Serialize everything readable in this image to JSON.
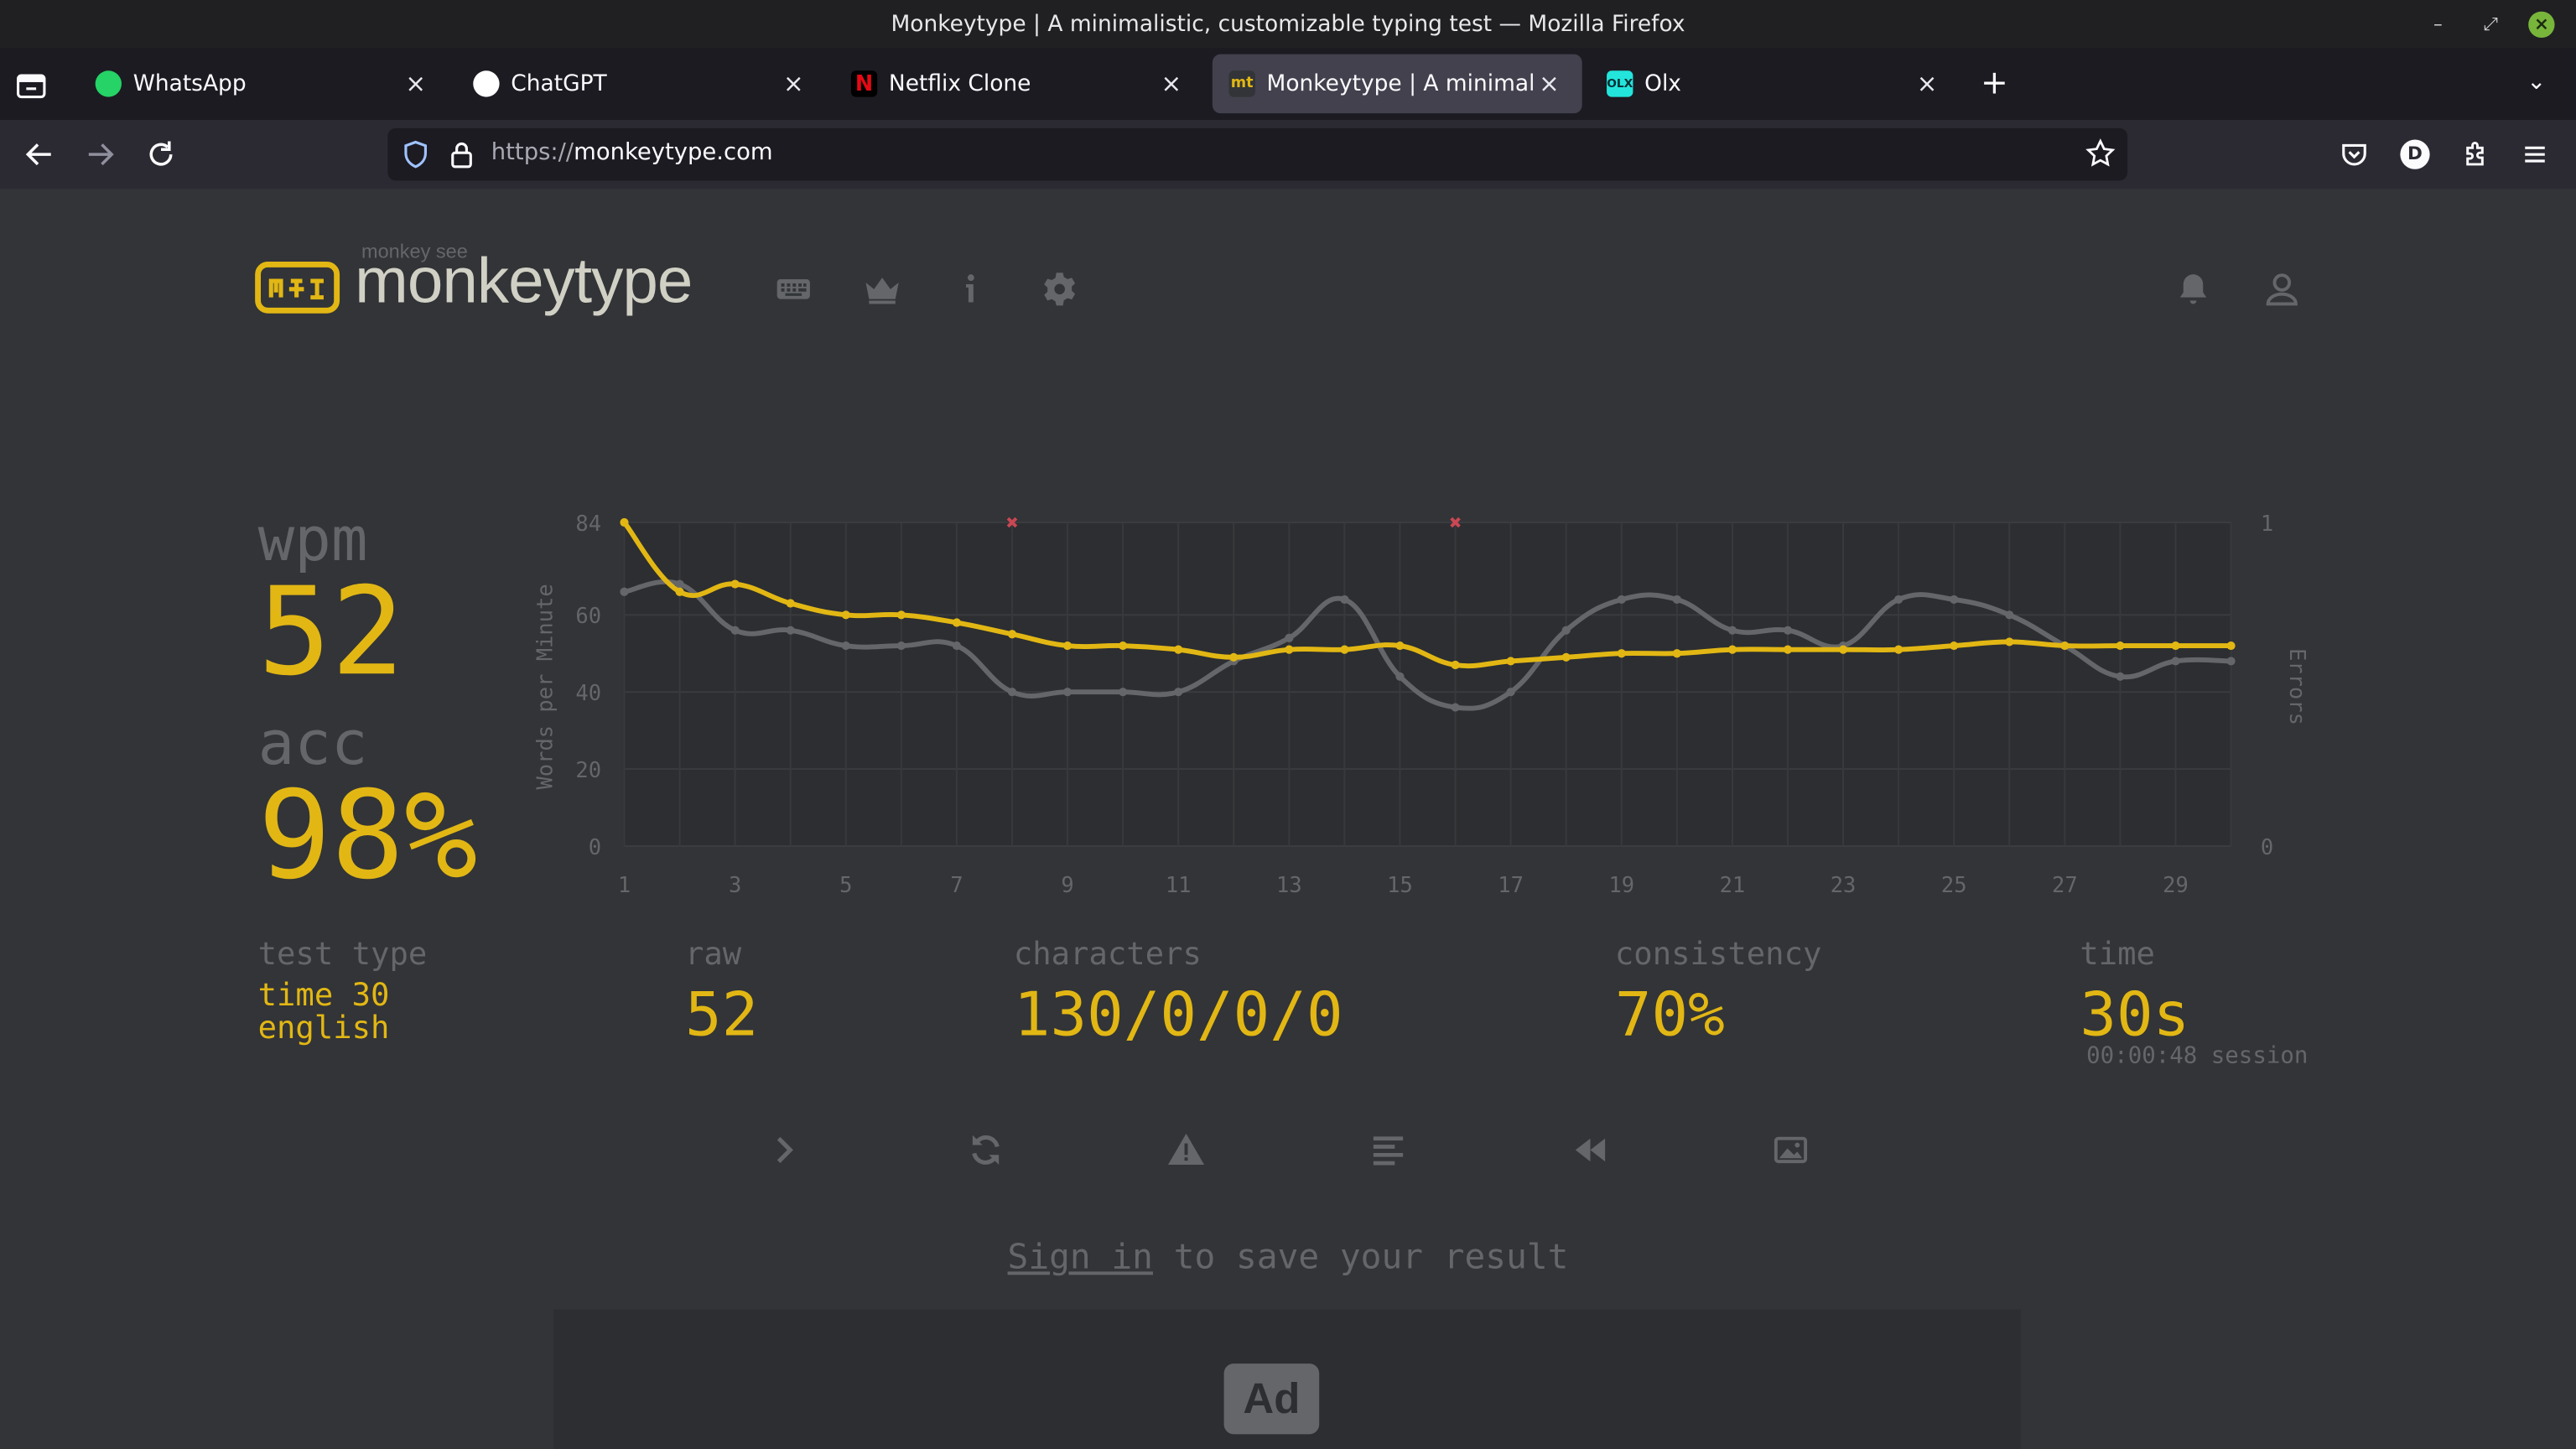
{
  "window": {
    "title": "Monkeytype | A minimalistic, customizable typing test — Mozilla Firefox"
  },
  "tabs": [
    {
      "title": "WhatsApp",
      "icon": "whatsapp-favicon",
      "color": "#25d366"
    },
    {
      "title": "ChatGPT",
      "icon": "chatgpt-favicon",
      "color": "#ffffff"
    },
    {
      "title": "Netflix Clone",
      "icon": "netflix-favicon",
      "color": "#e50914"
    },
    {
      "title": "Monkeytype | A minimalistic, customizable typing test",
      "icon": "monkeytype-favicon",
      "favicon_text": "mt",
      "color": "#e2b714",
      "active": true
    },
    {
      "title": "Olx",
      "icon": "olx-favicon",
      "favicon_text": "OLX",
      "color": "#23e5db"
    }
  ],
  "urlbar": {
    "scheme": "https://",
    "host": "monkeytype.com"
  },
  "app": {
    "logo_small": "monkey see",
    "logo_text": "monkeytype",
    "colors": {
      "main": "#e2b714",
      "sub": "#646669",
      "text": "#d1d0c5",
      "bg": "#323437",
      "error": "#ca4754"
    }
  },
  "results": {
    "wpm_label": "wpm",
    "wpm": "52",
    "acc_label": "acc",
    "acc": "98%",
    "test_type_label": "test type",
    "test_type_mode": "time 30",
    "test_type_language": "english",
    "raw_label": "raw",
    "raw": "52",
    "characters_label": "characters",
    "characters": "130/0/0/0",
    "consistency_label": "consistency",
    "consistency": "70%",
    "time_label": "time",
    "time": "30s",
    "session": "00:00:48 session"
  },
  "chart_data": {
    "type": "line",
    "x": [
      1,
      2,
      3,
      4,
      5,
      6,
      7,
      8,
      9,
      10,
      11,
      12,
      13,
      14,
      15,
      16,
      17,
      18,
      19,
      20,
      21,
      22,
      23,
      24,
      25,
      26,
      27,
      28,
      29,
      30
    ],
    "x_tick_labels": [
      "1",
      "3",
      "5",
      "7",
      "9",
      "11",
      "13",
      "15",
      "17",
      "19",
      "21",
      "23",
      "25",
      "27",
      "29"
    ],
    "ylabel": "Words per Minute",
    "y2label": "Errors",
    "ylim": [
      0,
      84
    ],
    "y_tick_labels": [
      "0",
      "20",
      "40",
      "60",
      "84"
    ],
    "y2_tick_labels": [
      "0",
      "1"
    ],
    "y2lim": [
      0,
      1
    ],
    "series": [
      {
        "name": "wpm",
        "color": "#e2b714",
        "values": [
          84,
          66,
          68,
          63,
          60,
          60,
          58,
          55,
          52,
          52,
          51,
          49,
          51,
          51,
          52,
          47,
          48,
          49,
          50,
          50,
          51,
          51,
          51,
          51,
          52,
          53,
          52,
          52,
          52,
          52
        ]
      },
      {
        "name": "raw",
        "color": "#646669",
        "values": [
          66,
          68,
          56,
          56,
          52,
          52,
          52,
          40,
          40,
          40,
          40,
          48,
          54,
          64,
          44,
          36,
          40,
          56,
          64,
          64,
          56,
          56,
          52,
          64,
          64,
          60,
          52,
          44,
          48,
          48
        ]
      }
    ],
    "errors": [
      {
        "x": 8,
        "count": 1
      },
      {
        "x": 16,
        "count": 1
      }
    ],
    "grid": true,
    "legend": "none"
  },
  "bottom": {
    "signin_link": "Sign in",
    "signin_rest": " to save your result",
    "ad_label": "Ad"
  }
}
